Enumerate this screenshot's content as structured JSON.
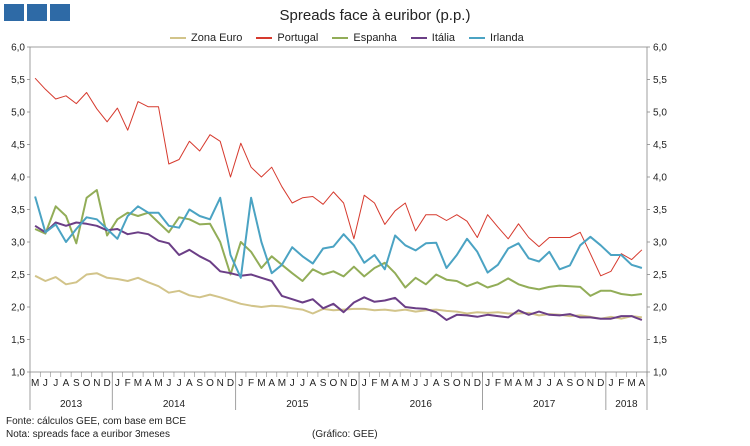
{
  "logo_icon": "gee-logo-icon",
  "chart_data": {
    "type": "line",
    "title": "Spreads face à euribor (p.p.)",
    "ylim": [
      1.0,
      6.0
    ],
    "yticks": [
      "1,0",
      "1,5",
      "2,0",
      "2,5",
      "3,0",
      "3,5",
      "4,0",
      "4,5",
      "5,0",
      "5,5",
      "6,0"
    ],
    "grid": false,
    "legend_position": "top",
    "month_labels": [
      "M",
      "J",
      "J",
      "A",
      "S",
      "O",
      "N",
      "D",
      "J",
      "F",
      "M",
      "A",
      "M",
      "J",
      "J",
      "A",
      "S",
      "O",
      "N",
      "D",
      "J",
      "F",
      "M",
      "A",
      "M",
      "J",
      "J",
      "A",
      "S",
      "O",
      "N",
      "D",
      "J",
      "F",
      "M",
      "A",
      "M",
      "J",
      "J",
      "A",
      "S",
      "O",
      "N",
      "D",
      "J",
      "F",
      "M",
      "A",
      "M",
      "J",
      "J",
      "A",
      "S",
      "O",
      "N",
      "D",
      "J",
      "F",
      "M",
      "A"
    ],
    "years": [
      {
        "label": "2013",
        "start": 0,
        "end": 8
      },
      {
        "label": "2014",
        "start": 8,
        "end": 20
      },
      {
        "label": "2015",
        "start": 20,
        "end": 32
      },
      {
        "label": "2016",
        "start": 32,
        "end": 44
      },
      {
        "label": "2017",
        "start": 44,
        "end": 56
      },
      {
        "label": "2018",
        "start": 56,
        "end": 60
      }
    ],
    "series": [
      {
        "name": "Zona Euro",
        "color": "#d2c48a",
        "values": [
          2.48,
          2.4,
          2.46,
          2.35,
          2.38,
          2.5,
          2.52,
          2.45,
          2.43,
          2.4,
          2.45,
          2.38,
          2.32,
          2.22,
          2.25,
          2.18,
          2.15,
          2.19,
          2.15,
          2.1,
          2.05,
          2.02,
          2.0,
          2.02,
          2.01,
          1.98,
          1.96,
          1.9,
          1.97,
          1.95,
          1.96,
          1.97,
          1.97,
          1.95,
          1.96,
          1.94,
          1.96,
          1.93,
          1.95,
          1.96,
          1.94,
          1.93,
          1.9,
          1.92,
          1.91,
          1.92,
          1.9,
          1.9,
          1.91,
          1.87,
          1.89,
          1.88,
          1.86,
          1.87,
          1.85,
          1.82,
          1.85,
          1.82,
          1.86,
          1.84
        ]
      },
      {
        "name": "Portugal",
        "color": "#d63a2e",
        "values": [
          5.52,
          5.35,
          5.2,
          5.25,
          5.13,
          5.3,
          5.05,
          4.85,
          5.06,
          4.72,
          5.16,
          5.08,
          5.08,
          4.2,
          4.27,
          4.55,
          4.4,
          4.65,
          4.55,
          4.0,
          4.52,
          4.15,
          4.0,
          4.15,
          3.85,
          3.6,
          3.68,
          3.7,
          3.58,
          3.77,
          3.6,
          3.05,
          3.72,
          3.6,
          3.27,
          3.48,
          3.6,
          3.17,
          3.42,
          3.42,
          3.33,
          3.42,
          3.32,
          3.07,
          3.42,
          3.23,
          3.05,
          3.28,
          3.07,
          2.93,
          3.07,
          3.07,
          3.07,
          3.15,
          2.82,
          2.48,
          2.55,
          2.82,
          2.73,
          2.88
        ]
      },
      {
        "name": "Espanha",
        "color": "#92ad58",
        "values": [
          3.2,
          3.13,
          3.55,
          3.4,
          2.98,
          3.68,
          3.8,
          3.1,
          3.35,
          3.45,
          3.4,
          3.45,
          3.3,
          3.15,
          3.38,
          3.35,
          3.27,
          3.28,
          3.0,
          2.5,
          3.0,
          2.85,
          2.6,
          2.78,
          2.65,
          2.52,
          2.4,
          2.58,
          2.5,
          2.55,
          2.47,
          2.62,
          2.47,
          2.6,
          2.68,
          2.52,
          2.3,
          2.45,
          2.35,
          2.5,
          2.42,
          2.4,
          2.32,
          2.38,
          2.3,
          2.35,
          2.44,
          2.35,
          2.3,
          2.27,
          2.31,
          2.33,
          2.32,
          2.31,
          2.17,
          2.25,
          2.25,
          2.2,
          2.18,
          2.2
        ]
      },
      {
        "name": "Itália",
        "color": "#6b3e86",
        "values": [
          3.25,
          3.15,
          3.3,
          3.25,
          3.3,
          3.28,
          3.25,
          3.18,
          3.2,
          3.12,
          3.15,
          3.12,
          3.02,
          2.98,
          2.8,
          2.88,
          2.78,
          2.7,
          2.55,
          2.52,
          2.48,
          2.5,
          2.45,
          2.4,
          2.17,
          2.12,
          2.07,
          2.12,
          1.98,
          2.05,
          1.92,
          2.07,
          2.15,
          2.08,
          2.1,
          2.14,
          2.0,
          1.98,
          1.97,
          1.92,
          1.8,
          1.88,
          1.87,
          1.85,
          1.88,
          1.86,
          1.84,
          1.95,
          1.88,
          1.93,
          1.88,
          1.87,
          1.89,
          1.84,
          1.84,
          1.82,
          1.82,
          1.86,
          1.86,
          1.8
        ]
      },
      {
        "name": "Irlanda",
        "color": "#4ba3c3",
        "values": [
          3.7,
          3.15,
          3.27,
          3.0,
          3.2,
          3.38,
          3.35,
          3.2,
          3.05,
          3.4,
          3.55,
          3.45,
          3.45,
          3.25,
          3.22,
          3.5,
          3.4,
          3.35,
          3.68,
          2.8,
          2.45,
          3.68,
          3.0,
          2.52,
          2.65,
          2.92,
          2.78,
          2.67,
          2.9,
          2.93,
          3.12,
          2.95,
          2.68,
          2.8,
          2.58,
          3.1,
          2.95,
          2.87,
          2.98,
          2.99,
          2.6,
          2.8,
          3.05,
          2.85,
          2.53,
          2.65,
          2.9,
          2.98,
          2.75,
          2.7,
          2.85,
          2.58,
          2.64,
          2.95,
          3.08,
          2.95,
          2.8,
          2.8,
          2.65,
          2.6
        ]
      }
    ]
  },
  "footer": {
    "source_line1": "Fonte: cálculos GEE, com base em BCE",
    "source_line2": "Nota: spreads face a euribor 3meses",
    "credit": "(Gráfico: GEE)"
  }
}
